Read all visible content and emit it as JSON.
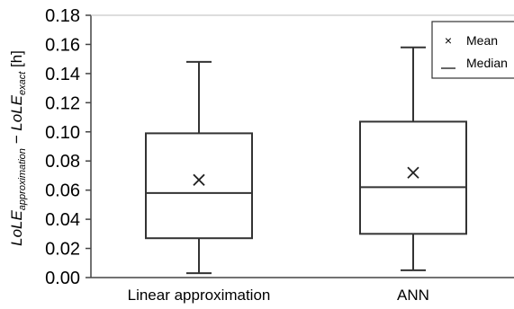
{
  "chart_data": {
    "type": "box",
    "categories": [
      "Linear approximation",
      "ANN"
    ],
    "series": [
      {
        "category": "Linear approximation",
        "min": 0.003,
        "q1": 0.027,
        "median": 0.058,
        "q3": 0.099,
        "max": 0.148,
        "mean": 0.067
      },
      {
        "category": "ANN",
        "min": 0.005,
        "q1": 0.03,
        "median": 0.062,
        "q3": 0.107,
        "max": 0.158,
        "mean": 0.072
      }
    ],
    "ylim": [
      0,
      0.18
    ],
    "yticks": [
      "0.00",
      "0.02",
      "0.04",
      "0.06",
      "0.08",
      "0.10",
      "0.12",
      "0.14",
      "0.16",
      "0.18"
    ],
    "ylabel": {
      "part1": "LoLE",
      "sub1": "approximation",
      "dash": " − ",
      "part2": "LoLE",
      "sub2": "exact",
      "unit": " [h]"
    },
    "legend": {
      "mean_label": "Mean",
      "median_label": "Median",
      "mean_symbol": "×",
      "placement": "top-right"
    },
    "grid": false
  }
}
